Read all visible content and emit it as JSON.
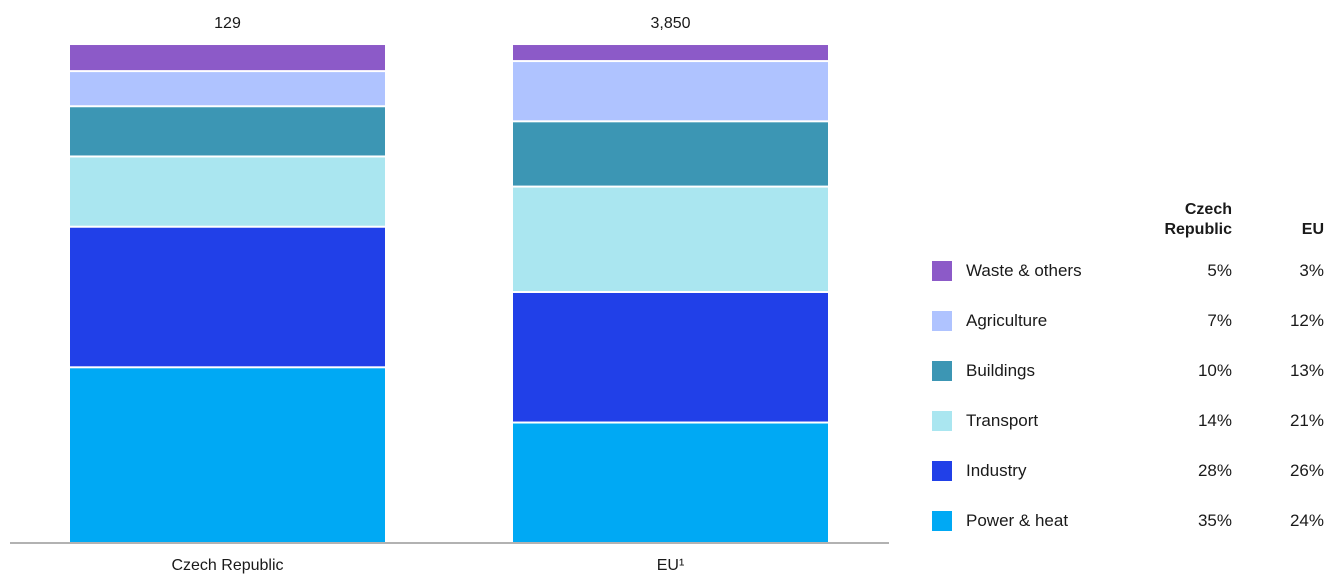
{
  "chart_data": {
    "type": "bar",
    "stacked": true,
    "normalized": true,
    "categories": [
      "Czech Republic",
      "EU¹"
    ],
    "totals": [
      "129",
      "3,850"
    ],
    "series": [
      {
        "name": "Power & heat",
        "color": "#00A9F4",
        "values": [
          35,
          24
        ]
      },
      {
        "name": "Industry",
        "color": "#2140E8",
        "values": [
          28,
          26
        ]
      },
      {
        "name": "Transport",
        "color": "#AAE6F0",
        "values": [
          14,
          21
        ]
      },
      {
        "name": "Buildings",
        "color": "#3C96B4",
        "values": [
          10,
          13
        ]
      },
      {
        "name": "Agriculture",
        "color": "#AFC3FF",
        "values": [
          7,
          12
        ]
      },
      {
        "name": "Waste & others",
        "color": "#8C5AC8",
        "values": [
          5,
          3
        ]
      }
    ],
    "ylim": [
      0,
      100
    ],
    "legend_position": "right",
    "grid": false
  },
  "legend": {
    "col1_header": "Czech Republic",
    "col2_header": "EU",
    "rows": [
      {
        "name": "Waste & others",
        "v1": "5%",
        "v2": "3%"
      },
      {
        "name": "Agriculture",
        "v1": "7%",
        "v2": "12%"
      },
      {
        "name": "Buildings",
        "v1": "10%",
        "v2": "13%"
      },
      {
        "name": "Transport",
        "v1": "14%",
        "v2": "21%"
      },
      {
        "name": "Industry",
        "v1": "28%",
        "v2": "26%"
      },
      {
        "name": "Power & heat",
        "v1": "35%",
        "v2": "24%"
      }
    ]
  }
}
